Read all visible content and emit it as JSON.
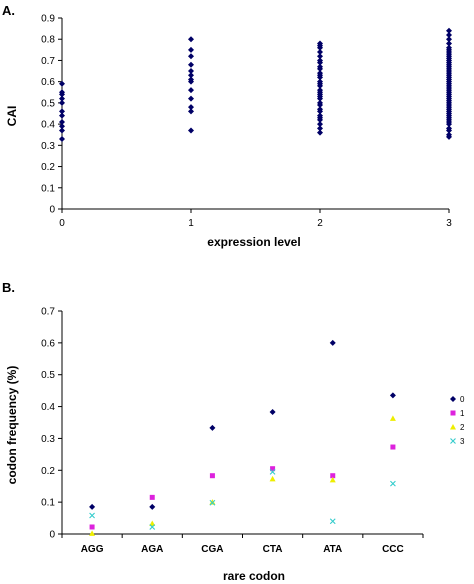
{
  "chart_data": [
    {
      "panel_label": "A.",
      "type": "scatter",
      "xlabel": "expression level",
      "ylabel": "CAI",
      "xlim": [
        0,
        3
      ],
      "ylim": [
        0,
        0.9
      ],
      "x_ticks": [
        "0",
        "1",
        "2",
        "3"
      ],
      "y_ticks": [
        "0",
        "0.1",
        "0.2",
        "0.3",
        "0.4",
        "0.5",
        "0.6",
        "0.7",
        "0.8",
        "0.9"
      ],
      "grid": false,
      "legend": false,
      "marker_color": "#000066",
      "series": [
        {
          "x": 0,
          "y": [
            0.33,
            0.37,
            0.39,
            0.41,
            0.44,
            0.46,
            0.5,
            0.52,
            0.54,
            0.55,
            0.59
          ]
        },
        {
          "x": 1,
          "y": [
            0.37,
            0.46,
            0.48,
            0.52,
            0.56,
            0.6,
            0.61,
            0.63,
            0.65,
            0.68,
            0.72,
            0.75,
            0.8
          ]
        },
        {
          "x": 2,
          "y": [
            0.36,
            0.38,
            0.4,
            0.42,
            0.43,
            0.44,
            0.46,
            0.47,
            0.49,
            0.5,
            0.52,
            0.53,
            0.54,
            0.55,
            0.56,
            0.58,
            0.59,
            0.6,
            0.62,
            0.63,
            0.64,
            0.66,
            0.67,
            0.69,
            0.7,
            0.72,
            0.74,
            0.76,
            0.77,
            0.78
          ]
        },
        {
          "x": 3,
          "y": [
            0.34,
            0.35,
            0.37,
            0.38,
            0.4,
            0.41,
            0.42,
            0.43,
            0.44,
            0.45,
            0.46,
            0.47,
            0.48,
            0.49,
            0.5,
            0.51,
            0.52,
            0.53,
            0.54,
            0.55,
            0.56,
            0.57,
            0.58,
            0.59,
            0.6,
            0.61,
            0.62,
            0.63,
            0.64,
            0.65,
            0.66,
            0.67,
            0.68,
            0.69,
            0.7,
            0.71,
            0.72,
            0.73,
            0.74,
            0.75,
            0.76,
            0.78,
            0.8,
            0.82,
            0.84
          ]
        }
      ]
    },
    {
      "panel_label": "B.",
      "type": "scatter",
      "xlabel": "rare codon",
      "ylabel": "codon frequency (%)",
      "categories": [
        "AGG",
        "AGA",
        "CGA",
        "CTA",
        "ATA",
        "CCC"
      ],
      "ylim": [
        0,
        0.7
      ],
      "y_ticks": [
        "0",
        "0.1",
        "0.2",
        "0.3",
        "0.4",
        "0.5",
        "0.6",
        "0.7"
      ],
      "grid": false,
      "legend_position": "right",
      "series": [
        {
          "name": "0",
          "marker": "diamond",
          "color": "#000066",
          "values": [
            0.085,
            0.085,
            0.333,
            0.383,
            0.6,
            0.435
          ]
        },
        {
          "name": "1",
          "marker": "square",
          "color": "#dd22dd",
          "values": [
            0.022,
            0.115,
            0.183,
            0.205,
            0.183,
            0.273
          ]
        },
        {
          "name": "2",
          "marker": "triangle",
          "color": "#eeee00",
          "values": [
            0.002,
            0.033,
            0.1,
            0.173,
            0.17,
            0.363
          ]
        },
        {
          "name": "3",
          "marker": "x",
          "color": "#33cccc",
          "values": [
            0.058,
            0.022,
            0.098,
            0.195,
            0.04,
            0.158
          ]
        }
      ]
    }
  ]
}
